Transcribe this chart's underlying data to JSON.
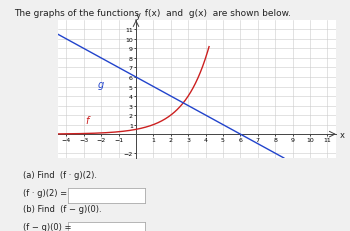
{
  "title": "The graphs of the functions  f(x)  and  g(x)  are shown below.",
  "title_fontsize": 6.5,
  "bg_color": "#f0f0f0",
  "plot_bg_color": "#ffffff",
  "grid_color": "#cccccc",
  "axis_color": "#444444",
  "xlim": [
    -4.5,
    11.5
  ],
  "ylim": [
    -2.5,
    12.0
  ],
  "xticks": [
    -4,
    -3,
    -2,
    -1,
    1,
    2,
    3,
    4,
    5,
    6,
    7,
    8,
    9,
    10,
    11
  ],
  "yticks": [
    -2,
    1,
    2,
    3,
    4,
    5,
    6,
    7,
    8,
    9,
    10,
    11
  ],
  "xlabel": "x",
  "ylabel": "y",
  "f_color": "#cc2020",
  "g_color": "#2244cc",
  "f_label": "f",
  "g_label": "g",
  "label_fontsize": 6,
  "tick_fontsize": 4.5,
  "qa_text_a": "(a) Find  (f · g)(2).",
  "qa_text_a2": "(f · g)(2) =",
  "qa_text_b": "(b) Find  (f − g)(0).",
  "qa_text_b2": "(f − g)(0) =",
  "qa_fontsize": 6.0,
  "box_color": "#dddddd"
}
